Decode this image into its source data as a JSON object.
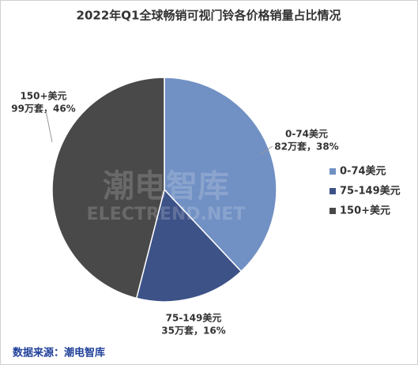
{
  "chart_data": {
    "type": "pie",
    "title": "2022年Q1全球畅销可视门铃各价格销量占比情况",
    "categories": [
      "0-74美元",
      "75-149美元",
      "150+美元"
    ],
    "values": [
      38,
      16,
      46
    ],
    "value_labels": [
      "82万套，38%",
      "35万套，16%",
      "99万套，46%"
    ],
    "colors": [
      "#7190c4",
      "#3d5287",
      "#494949"
    ],
    "legend": "right",
    "watermark": [
      "潮电智库",
      "ELECTREND.NET"
    ],
    "source": "数据来源：潮电智库"
  }
}
